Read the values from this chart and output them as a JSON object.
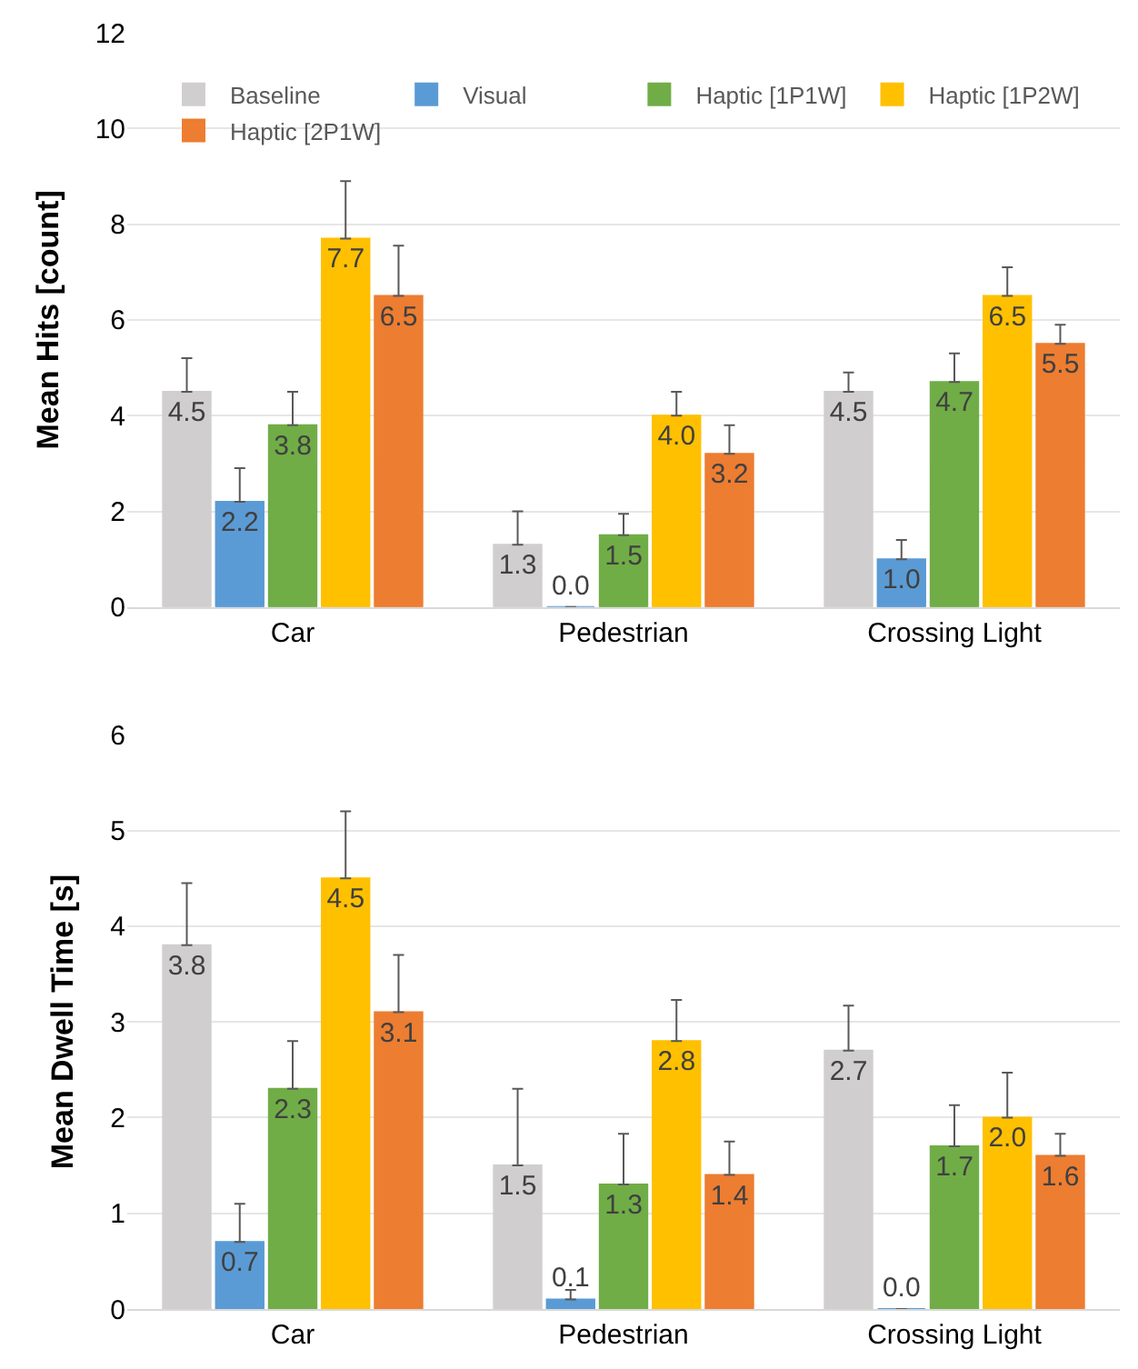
{
  "chart_data": [
    {
      "type": "bar",
      "ylabel": "Mean Hits [count]",
      "categories": [
        "Car",
        "Pedestrian",
        "Crossing Light"
      ],
      "ylim": [
        0,
        12
      ],
      "yticks": [
        0,
        2,
        4,
        6,
        8,
        10,
        12
      ],
      "grid": "y",
      "legend": "top",
      "series": [
        {
          "name": "Baseline",
          "color": "#d0cece",
          "values": [
            4.5,
            1.3,
            4.5
          ],
          "value_labels": [
            "4.5",
            "1.3",
            "4.5"
          ],
          "errors": [
            [
              4.5,
              5.2
            ],
            [
              1.3,
              2.0
            ],
            [
              4.5,
              4.9
            ]
          ]
        },
        {
          "name": "Visual",
          "color": "#5b9bd5",
          "values": [
            2.2,
            0.0,
            1.0
          ],
          "value_labels": [
            "2.2",
            "0.0",
            "1.0"
          ],
          "errors": [
            [
              2.2,
              2.9
            ],
            null,
            [
              1.0,
              1.4
            ]
          ]
        },
        {
          "name": "Haptic [1P1W]",
          "color": "#70ad47",
          "values": [
            3.8,
            1.5,
            4.7
          ],
          "value_labels": [
            "3.8",
            "1.5",
            "4.7"
          ],
          "errors": [
            [
              3.8,
              4.5
            ],
            [
              1.5,
              1.95
            ],
            [
              4.7,
              5.3
            ]
          ]
        },
        {
          "name": "Haptic [1P2W]",
          "color": "#ffc000",
          "values": [
            7.7,
            4.0,
            6.5
          ],
          "value_labels": [
            "7.7",
            "4.0",
            "6.5"
          ],
          "errors": [
            [
              7.7,
              8.9
            ],
            [
              4.0,
              4.5
            ],
            [
              6.5,
              7.1
            ]
          ]
        },
        {
          "name": "Haptic [2P1W]",
          "color": "#ed7d31",
          "values": [
            6.5,
            3.2,
            5.5
          ],
          "value_labels": [
            "6.5",
            "3.2",
            "5.5"
          ],
          "errors": [
            [
              6.5,
              7.55
            ],
            [
              3.2,
              3.8
            ],
            [
              5.5,
              5.9
            ]
          ]
        }
      ]
    },
    {
      "type": "bar",
      "ylabel": "Mean Dwell Time [s]",
      "categories": [
        "Car",
        "Pedestrian",
        "Crossing Light"
      ],
      "ylim": [
        0,
        6
      ],
      "yticks": [
        0,
        1,
        2,
        3,
        4,
        5,
        6
      ],
      "grid": "y",
      "series": [
        {
          "color": "#d0cece",
          "values": [
            3.8,
            1.5,
            2.7
          ],
          "value_labels": [
            "3.8",
            "1.5",
            "2.7"
          ],
          "errors": [
            [
              3.8,
              4.45
            ],
            [
              1.5,
              2.3
            ],
            [
              2.7,
              3.17
            ]
          ]
        },
        {
          "color": "#5b9bd5",
          "values": [
            0.7,
            0.1,
            0.0
          ],
          "value_labels": [
            "0.7",
            "0.1",
            "0.0"
          ],
          "errors": [
            [
              0.7,
              1.1
            ],
            [
              0.1,
              0.2
            ],
            null
          ]
        },
        {
          "color": "#70ad47",
          "values": [
            2.3,
            1.3,
            1.7
          ],
          "value_labels": [
            "2.3",
            "1.3",
            "1.7"
          ],
          "errors": [
            [
              2.3,
              2.8
            ],
            [
              1.3,
              1.83
            ],
            [
              1.7,
              2.13
            ]
          ]
        },
        {
          "color": "#ffc000",
          "values": [
            4.5,
            2.8,
            2.0
          ],
          "value_labels": [
            "4.5",
            "2.8",
            "2.0"
          ],
          "errors": [
            [
              4.5,
              5.2
            ],
            [
              2.8,
              3.23
            ],
            [
              2.0,
              2.47
            ]
          ]
        },
        {
          "color": "#ed7d31",
          "values": [
            3.1,
            1.4,
            1.6
          ],
          "value_labels": [
            "3.1",
            "1.4",
            "1.6"
          ],
          "errors": [
            [
              3.1,
              3.7
            ],
            [
              1.4,
              1.75
            ],
            [
              1.6,
              1.83
            ]
          ]
        }
      ]
    }
  ]
}
